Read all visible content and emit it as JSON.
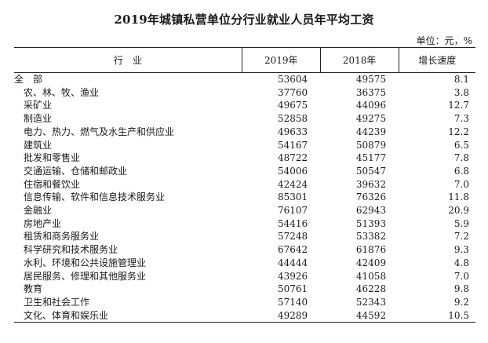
{
  "title": "2019年城镇私营单位分行业就业人员年平均工资",
  "unit": "单位：元，%",
  "headers": {
    "industry": "行　业",
    "y2019": "2019年",
    "y2018": "2018年",
    "growth": "增长速度"
  },
  "rows": [
    {
      "name": "全　部",
      "y2019": "53604",
      "y2018": "49575",
      "growth": "8.1",
      "sub": false
    },
    {
      "name": "农、林、牧、渔业",
      "y2019": "37760",
      "y2018": "36375",
      "growth": "3.8",
      "sub": true
    },
    {
      "name": "采矿业",
      "y2019": "49675",
      "y2018": "44096",
      "growth": "12.7",
      "sub": true
    },
    {
      "name": "制造业",
      "y2019": "52858",
      "y2018": "49275",
      "growth": "7.3",
      "sub": true
    },
    {
      "name": "电力、热力、燃气及水生产和供应业",
      "y2019": "49633",
      "y2018": "44239",
      "growth": "12.2",
      "sub": true
    },
    {
      "name": "建筑业",
      "y2019": "54167",
      "y2018": "50879",
      "growth": "6.5",
      "sub": true
    },
    {
      "name": "批发和零售业",
      "y2019": "48722",
      "y2018": "45177",
      "growth": "7.8",
      "sub": true
    },
    {
      "name": "交通运输、仓储和邮政业",
      "y2019": "54006",
      "y2018": "50547",
      "growth": "6.8",
      "sub": true
    },
    {
      "name": "住宿和餐饮业",
      "y2019": "42424",
      "y2018": "39632",
      "growth": "7.0",
      "sub": true
    },
    {
      "name": "信息传输、软件和信息技术服务业",
      "y2019": "85301",
      "y2018": "76326",
      "growth": "11.8",
      "sub": true
    },
    {
      "name": "金融业",
      "y2019": "76107",
      "y2018": "62943",
      "growth": "20.9",
      "sub": true
    },
    {
      "name": "房地产业",
      "y2019": "54416",
      "y2018": "51393",
      "growth": "5.9",
      "sub": true
    },
    {
      "name": "租赁和商务服务业",
      "y2019": "57248",
      "y2018": "53382",
      "growth": "7.2",
      "sub": true
    },
    {
      "name": "科学研究和技术服务业",
      "y2019": "67642",
      "y2018": "61876",
      "growth": "9.3",
      "sub": true
    },
    {
      "name": "水利、环境和公共设施管理业",
      "y2019": "44444",
      "y2018": "42409",
      "growth": "4.8",
      "sub": true
    },
    {
      "name": "居民服务、修理和其他服务业",
      "y2019": "43926",
      "y2018": "41058",
      "growth": "7.0",
      "sub": true
    },
    {
      "name": "教育",
      "y2019": "50761",
      "y2018": "46228",
      "growth": "9.8",
      "sub": true
    },
    {
      "name": "卫生和社会工作",
      "y2019": "57140",
      "y2018": "52343",
      "growth": "9.2",
      "sub": true
    },
    {
      "name": "文化、体育和娱乐业",
      "y2019": "49289",
      "y2018": "44592",
      "growth": "10.5",
      "sub": true
    }
  ]
}
